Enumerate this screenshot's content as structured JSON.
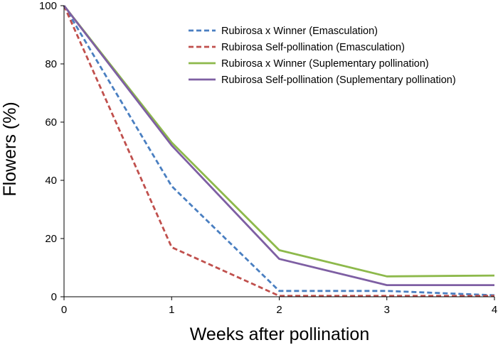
{
  "chart_data": {
    "type": "line",
    "title": "",
    "xlabel": "Weeks after pollination",
    "ylabel": "Flowers (%)",
    "x": [
      0,
      1,
      2,
      3,
      4
    ],
    "xlim": [
      0,
      4
    ],
    "ylim": [
      0,
      100
    ],
    "xticks": [
      0,
      1,
      2,
      3,
      4
    ],
    "yticks": [
      0,
      20,
      40,
      60,
      80,
      100
    ],
    "grid": false,
    "legend_position": "top-right",
    "series": [
      {
        "name": "Rubirosa x Winner (Emasculation)",
        "values": [
          100,
          38,
          2,
          2,
          0.5
        ],
        "color": "#4a7fc1",
        "dash": "dashed"
      },
      {
        "name": "Rubirosa Self-pollination (Emasculation)",
        "values": [
          100,
          17,
          0.3,
          0.3,
          0.3
        ],
        "color": "#c0504d",
        "dash": "dashed"
      },
      {
        "name": "Rubirosa x Winner (Suplementary pollination)",
        "values": [
          100,
          53,
          16,
          7,
          7.3
        ],
        "color": "#8db94b",
        "dash": "solid"
      },
      {
        "name": "Rubirosa Self-pollination (Suplementary pollination)",
        "values": [
          100,
          52,
          13,
          4,
          4
        ],
        "color": "#7e5fa3",
        "dash": "solid"
      }
    ]
  }
}
